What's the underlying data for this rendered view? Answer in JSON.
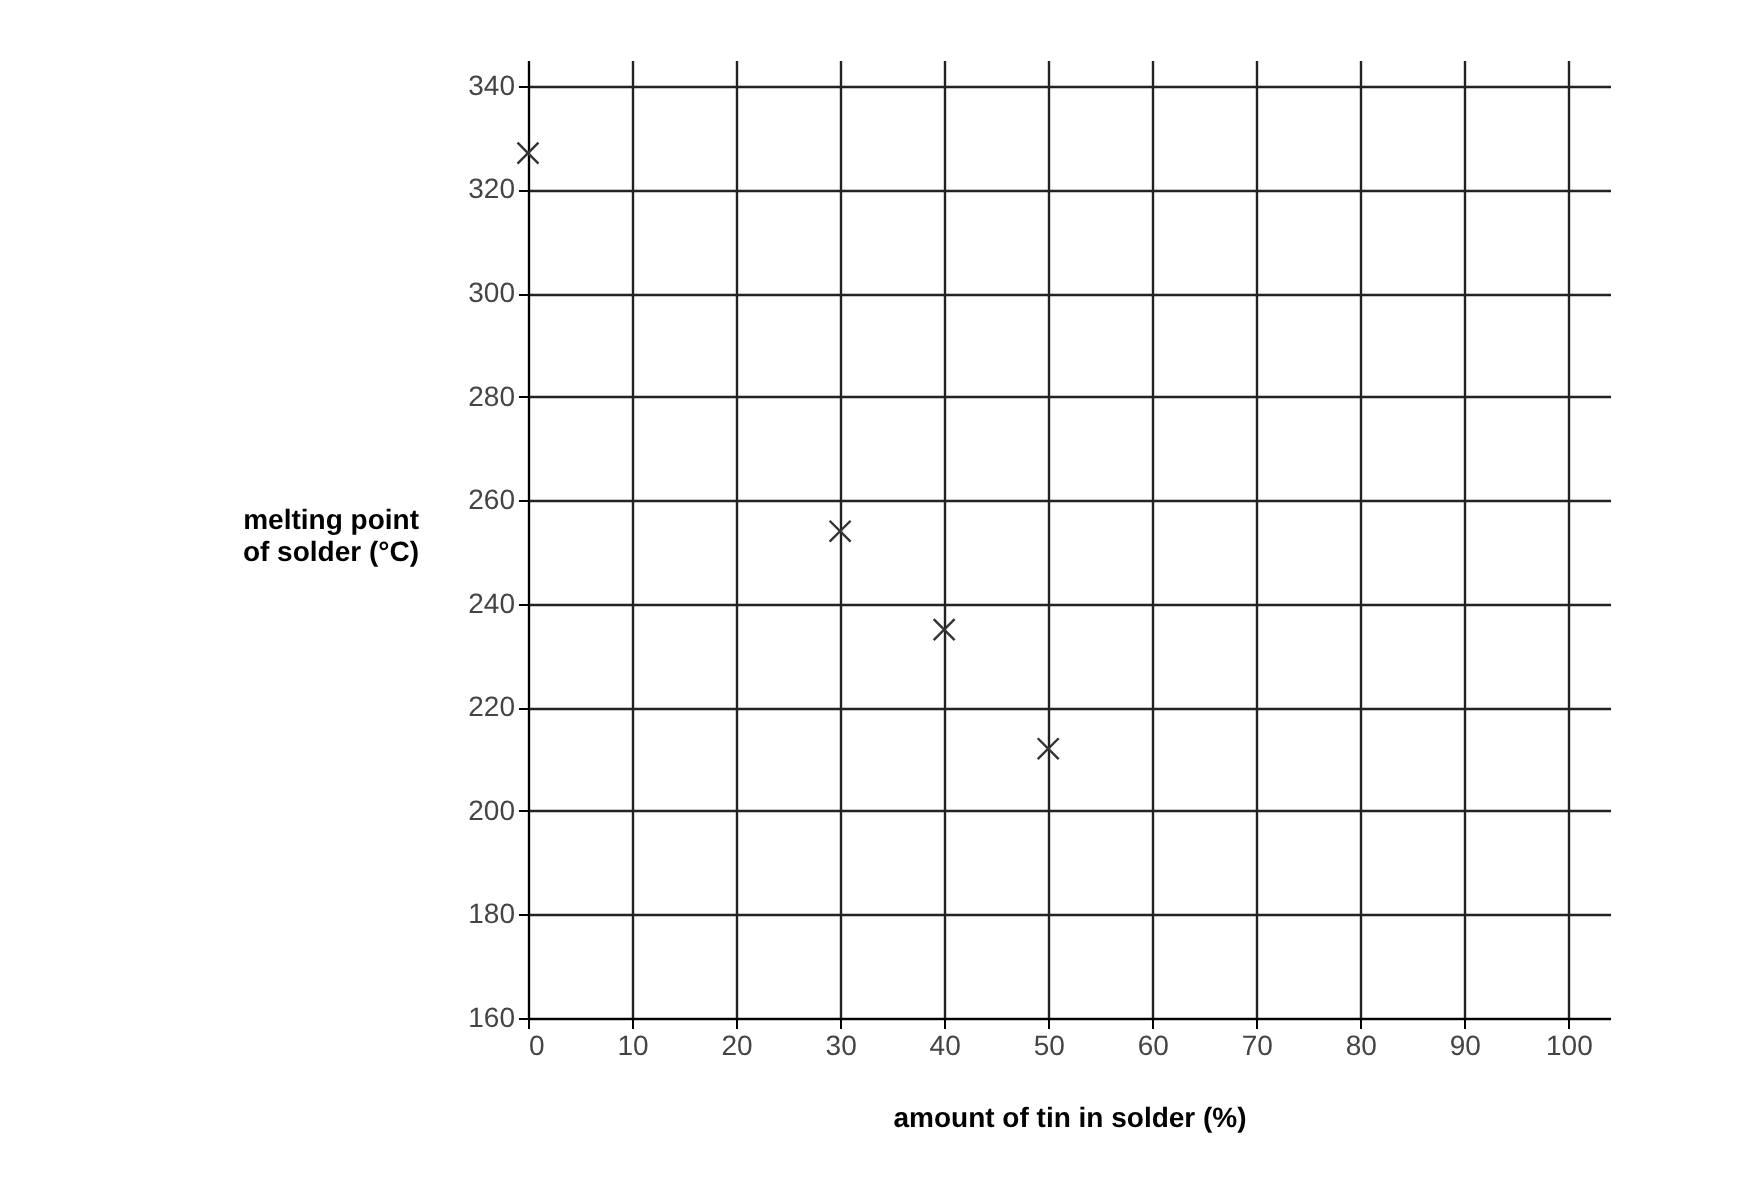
{
  "chart_data": {
    "type": "scatter",
    "xlabel": "amount of tin in solder (%)",
    "ylabel": "melting point\nof solder (°C)",
    "x": [
      0,
      30,
      40,
      50
    ],
    "series": [
      {
        "color": "#333333",
        "values": [
          327,
          254,
          235,
          212
        ]
      }
    ],
    "xlim": [
      0,
      104
    ],
    "ylim": [
      160,
      345
    ],
    "xticks": [
      0,
      10,
      20,
      30,
      40,
      50,
      60,
      70,
      80,
      90,
      100
    ],
    "yticks": [
      160,
      180,
      200,
      220,
      240,
      260,
      280,
      300,
      320,
      340
    ],
    "grid": true,
    "marker": "cross"
  }
}
